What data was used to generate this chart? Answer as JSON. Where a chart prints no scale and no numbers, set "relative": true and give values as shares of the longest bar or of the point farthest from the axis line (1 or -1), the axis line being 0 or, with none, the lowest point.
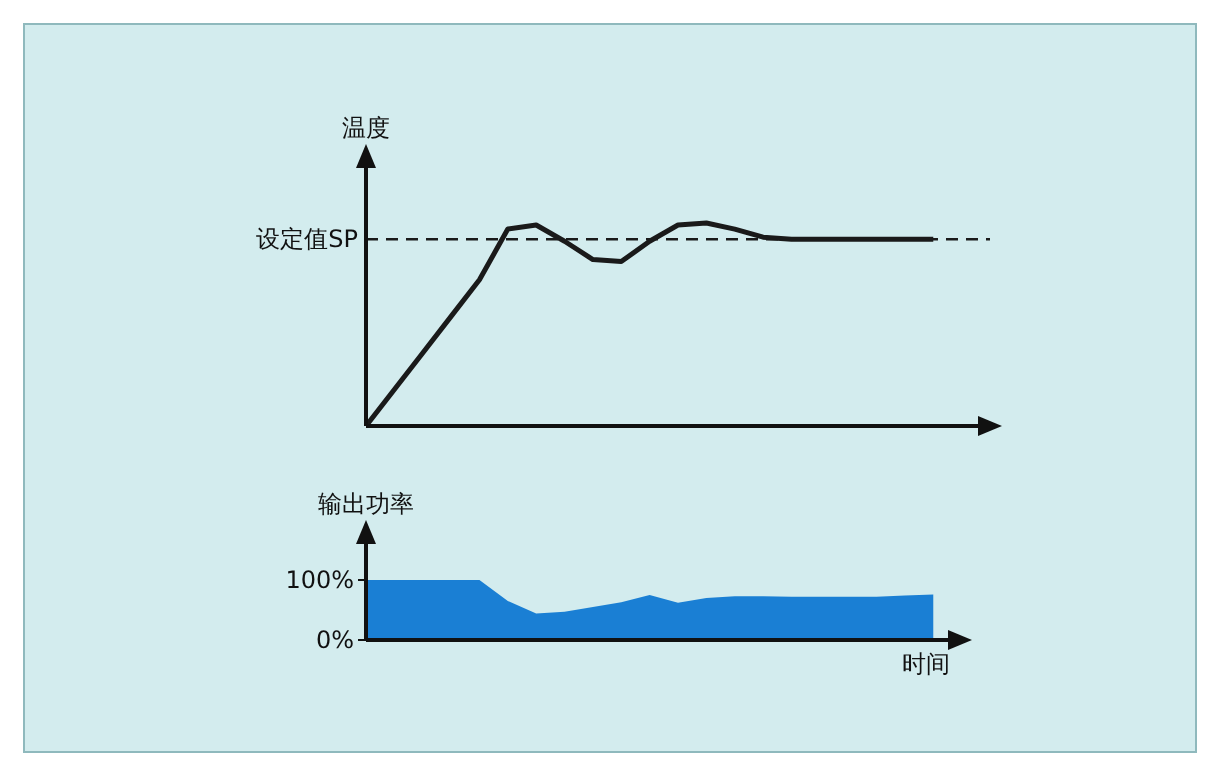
{
  "chart_data": [
    {
      "type": "line",
      "relative": true,
      "ylabel": "温度",
      "color": "#1a1a1a",
      "line_style": "solid",
      "categories": [
        null,
        null,
        null,
        null,
        null,
        null,
        null,
        null,
        null,
        null,
        null,
        null,
        null,
        null,
        null,
        null,
        null,
        null,
        null,
        null,
        null,
        null,
        null
      ],
      "values": [
        0,
        0.18,
        0.36,
        0.54,
        0.72,
        0.97,
        0.99,
        0.91,
        0.82,
        0.81,
        0.91,
        0.99,
        1,
        0.97,
        0.93,
        0.92,
        0.92,
        0.92,
        0.92,
        0.92,
        0.92,
        null,
        null
      ],
      "ref_lines": [
        {
          "axis": "y",
          "value": 0.92,
          "label": "设定值SP",
          "line_style": "dashed",
          "color": "#1a1a1a"
        }
      ]
    },
    {
      "type": "area",
      "ylabel": "输出功率",
      "xlabel": "时间",
      "color": "#1a7fd4",
      "ylim": [
        0,
        180
      ],
      "yticks": [
        {
          "value": 0,
          "label": "0%"
        },
        {
          "value": 100,
          "label": "100%"
        }
      ],
      "categories": [
        null,
        null,
        null,
        null,
        null,
        null,
        null,
        null,
        null,
        null,
        null,
        null,
        null,
        null,
        null,
        null,
        null,
        null,
        null,
        null,
        null,
        null,
        null
      ],
      "values": [
        100,
        100,
        100,
        100,
        100,
        65,
        44,
        47,
        55,
        63,
        75,
        62,
        70,
        73,
        73,
        72,
        72,
        72,
        72,
        74,
        76,
        null,
        null
      ]
    }
  ]
}
